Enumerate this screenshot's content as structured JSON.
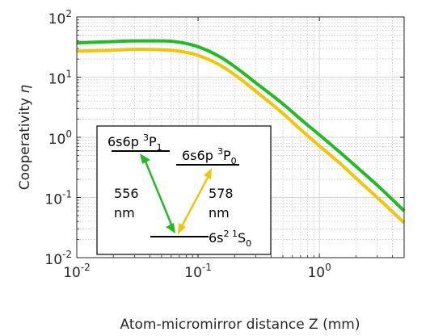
{
  "chart_data": {
    "type": "line",
    "title": "",
    "xlabel": "Atom-micromirror distance Z (mm)",
    "ylabel_text": "Cooperativity ",
    "ylabel_symbol": "η",
    "x_scale": "log",
    "y_scale": "log",
    "xlim": [
      0.01,
      5
    ],
    "ylim": [
      0.01,
      100
    ],
    "grid": true,
    "minor_grid": true,
    "x_ticks": [
      {
        "value": 0.01,
        "base": "10",
        "exp": "-2"
      },
      {
        "value": 0.1,
        "base": "10",
        "exp": "-1"
      },
      {
        "value": 1,
        "base": "10",
        "exp": "0"
      }
    ],
    "y_ticks": [
      {
        "value": 0.01,
        "base": "10",
        "exp": "-2"
      },
      {
        "value": 0.1,
        "base": "10",
        "exp": "-1"
      },
      {
        "value": 1,
        "base": "10",
        "exp": "0"
      },
      {
        "value": 10,
        "base": "10",
        "exp": "1"
      },
      {
        "value": 100,
        "base": "10",
        "exp": "2"
      }
    ],
    "series": [
      {
        "color": "#22bb22",
        "x": [
          0.01,
          0.02,
          0.03,
          0.05,
          0.07,
          0.1,
          0.15,
          0.2,
          0.3,
          0.5,
          0.7,
          1.0,
          1.5,
          2.0,
          3.0,
          5.0
        ],
        "y": [
          37,
          39,
          40,
          40,
          38,
          32,
          22,
          15,
          8,
          3.6,
          2.0,
          1.1,
          0.55,
          0.33,
          0.16,
          0.06
        ]
      },
      {
        "color": "#f2c40c",
        "x": [
          0.01,
          0.02,
          0.03,
          0.05,
          0.07,
          0.1,
          0.15,
          0.2,
          0.3,
          0.5,
          0.7,
          1.0,
          1.5,
          2.0,
          3.0,
          5.0
        ],
        "y": [
          27,
          28,
          29,
          28.5,
          27,
          23,
          16,
          11,
          5.8,
          2.5,
          1.35,
          0.72,
          0.36,
          0.21,
          0.1,
          0.038
        ]
      }
    ],
    "inset": {
      "level_3p1": {
        "main": "6s6p ",
        "sup": "3",
        "main2": "P",
        "sub": "1"
      },
      "level_3p0": {
        "main": "6s6p ",
        "sup": "3",
        "main2": "P",
        "sub": "0"
      },
      "level_1s0": {
        "main": "6s",
        "sup": "2 1",
        "main2": "S",
        "sub": "0"
      },
      "wavelength_green": "556",
      "wavelength_yellow": "578",
      "unit": "nm"
    }
  }
}
